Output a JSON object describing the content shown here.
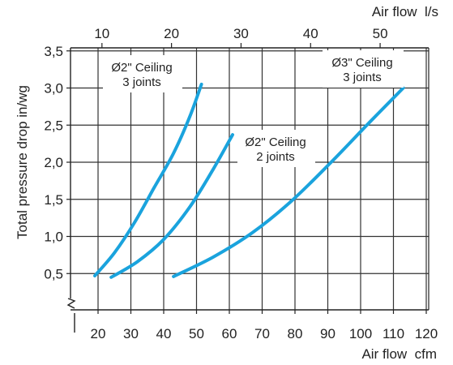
{
  "chart_data": {
    "type": "line",
    "title": "",
    "xlabel": "Air flow  cfm",
    "ylabel": "Total pressure drop in/wg",
    "x2label": "Air flow  l/s",
    "xlim": [
      15,
      120
    ],
    "ylim": [
      0.0,
      3.5
    ],
    "x_ticks": [
      "20",
      "30",
      "40",
      "50",
      "60",
      "70",
      "80",
      "90",
      "100",
      "110",
      "120"
    ],
    "y_ticks": [
      "0,5",
      "1,0",
      "1,5",
      "2,0",
      "2,5",
      "3,0",
      "3,5"
    ],
    "x2_ticks": [
      "10",
      "20",
      "30",
      "40",
      "50"
    ],
    "grid": true,
    "legend": "none",
    "line_color": "#1aa3dd",
    "series": [
      {
        "name": "Ø2\" Ceiling\n3 joints",
        "points": [
          [
            19,
            0.47
          ],
          [
            25,
            0.78
          ],
          [
            31,
            1.18
          ],
          [
            37,
            1.65
          ],
          [
            43,
            2.12
          ],
          [
            48,
            2.62
          ],
          [
            51.5,
            3.05
          ]
        ]
      },
      {
        "name": "Ø2\" Ceiling\n2 joints",
        "points": [
          [
            24,
            0.45
          ],
          [
            32,
            0.66
          ],
          [
            40,
            0.96
          ],
          [
            48,
            1.4
          ],
          [
            55,
            1.9
          ],
          [
            61,
            2.37
          ]
        ]
      },
      {
        "name": "Ø3\" Ceiling\n3 joints",
        "points": [
          [
            43,
            0.46
          ],
          [
            55,
            0.72
          ],
          [
            67,
            1.05
          ],
          [
            79,
            1.48
          ],
          [
            91,
            2.0
          ],
          [
            103,
            2.55
          ],
          [
            113,
            3.0
          ]
        ]
      }
    ],
    "annotations": [
      {
        "lines": [
          "Ø2\" Ceiling",
          "3 joints"
        ]
      },
      {
        "lines": [
          "Ø2\" Ceiling",
          "2 joints"
        ]
      },
      {
        "lines": [
          "Ø3\" Ceiling",
          "3 joints"
        ]
      }
    ]
  }
}
